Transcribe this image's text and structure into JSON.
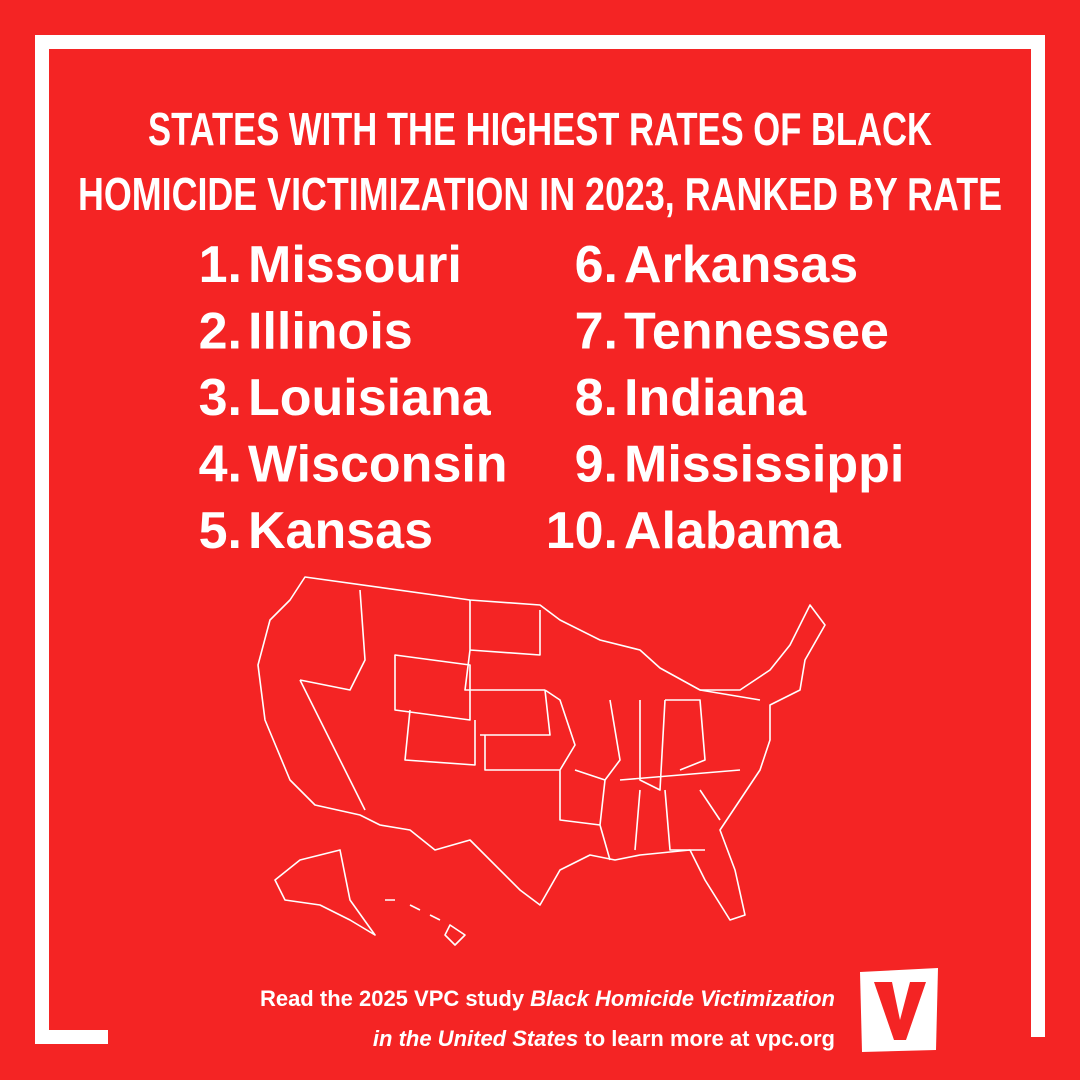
{
  "header": {
    "title_lines": [
      "STATES WITH THE HIGHEST RATES OF BLACK",
      "HOMICIDE VICTIMIZATION IN 2023, RANKED BY RATE"
    ]
  },
  "rankings": [
    {
      "rank": "1.",
      "state": "Missouri"
    },
    {
      "rank": "2.",
      "state": "Illinois"
    },
    {
      "rank": "3.",
      "state": "Louisiana"
    },
    {
      "rank": "4.",
      "state": "Wisconsin"
    },
    {
      "rank": "5.",
      "state": "Kansas"
    },
    {
      "rank": "6.",
      "state": "Arkansas"
    },
    {
      "rank": "7.",
      "state": "Tennessee"
    },
    {
      "rank": "8.",
      "state": "Indiana"
    },
    {
      "rank": "9.",
      "state": "Mississippi"
    },
    {
      "rank": "10.",
      "state": "Alabama"
    }
  ],
  "footer": {
    "line1_plain": "Read the 2025 VPC study ",
    "line1_italic": "Black Homicide Victimization",
    "line2_italic": "in the United States",
    "line2_plain": " to learn more at vpc.org"
  }
}
